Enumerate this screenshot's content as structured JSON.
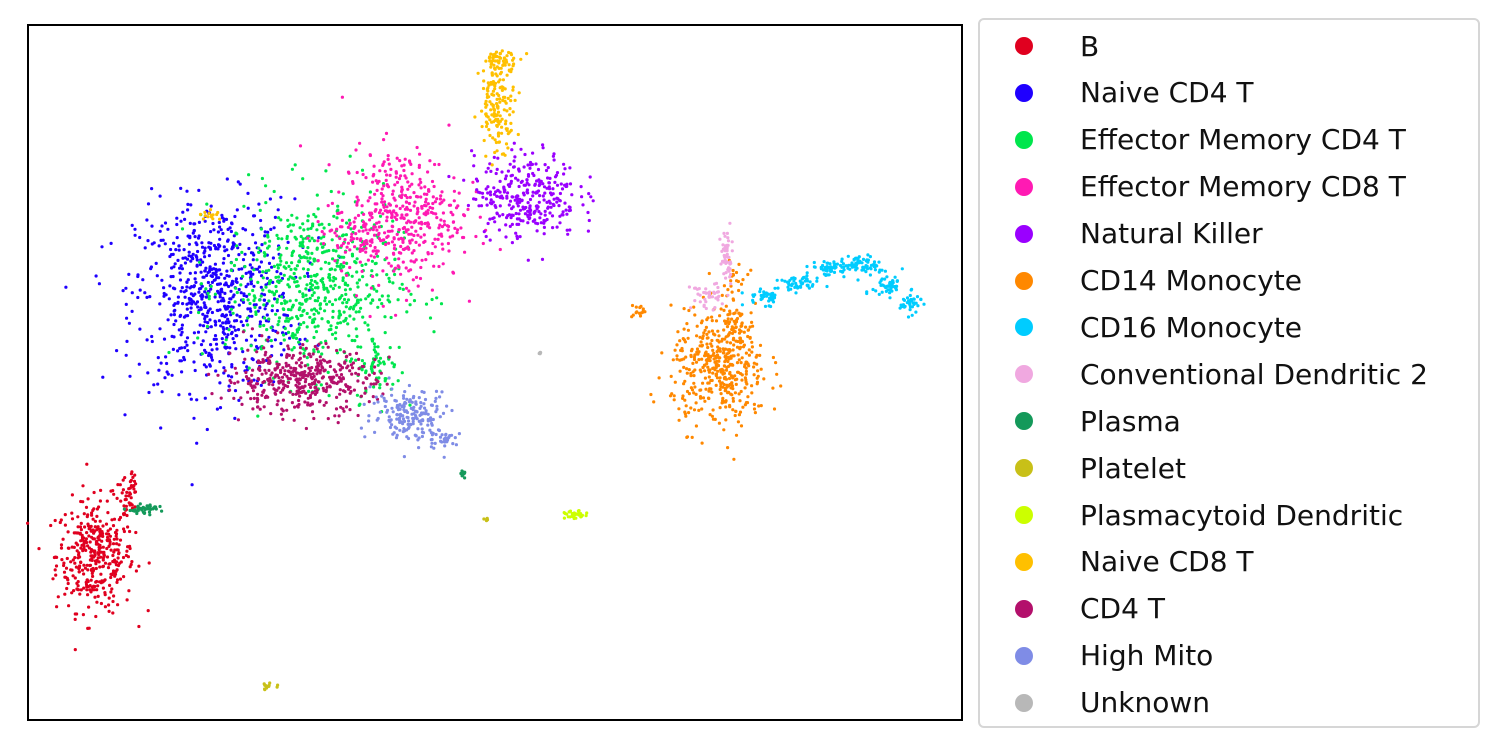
{
  "chart_data": {
    "type": "scatter",
    "xlim": [
      0,
      100
    ],
    "ylim": [
      0,
      100
    ],
    "grid": false,
    "axes_ticks": false,
    "legend_placement": "right outside",
    "series": [
      {
        "name": "B",
        "color": "#e0001f",
        "clusters": [
          {
            "x": 7.2,
            "y": 23.7,
            "sx": 2.6,
            "sy": 5.0,
            "n": 380
          },
          {
            "x": 10.5,
            "y": 31.5,
            "sx": 0.8,
            "sy": 2.0,
            "n": 30
          },
          {
            "x": 11.2,
            "y": 34.0,
            "sx": 0.2,
            "sy": 1.0,
            "n": 12
          }
        ]
      },
      {
        "name": "Naive CD4 T",
        "color": "#1f00ff",
        "clusters": [
          {
            "x": 20.0,
            "y": 61.2,
            "sx": 5.3,
            "sy": 8.5,
            "n": 700
          }
        ]
      },
      {
        "name": "Effector Memory CD4 T",
        "color": "#00e64d",
        "clusters": [
          {
            "x": 30.5,
            "y": 62.5,
            "sx": 5.8,
            "sy": 8.0,
            "n": 620
          },
          {
            "x": 37.5,
            "y": 50.5,
            "sx": 1.5,
            "sy": 3.0,
            "n": 60
          }
        ]
      },
      {
        "name": "Effector Memory CD8 T",
        "color": "#ff1ab3",
        "clusters": [
          {
            "x": 40.0,
            "y": 72.5,
            "sx": 4.0,
            "sy": 6.0,
            "n": 420
          },
          {
            "x": 34.5,
            "y": 69.5,
            "sx": 2.5,
            "sy": 2.0,
            "n": 60
          }
        ]
      },
      {
        "name": "Natural Killer",
        "color": "#9a00ff",
        "clusters": [
          {
            "x": 53.3,
            "y": 75.5,
            "sx": 3.5,
            "sy": 3.8,
            "n": 320
          }
        ]
      },
      {
        "name": "CD14 Monocyte",
        "color": "#ff8800",
        "clusters": [
          {
            "x": 74.0,
            "y": 50.5,
            "sx": 3.2,
            "sy": 5.2,
            "n": 420
          },
          {
            "x": 75.5,
            "y": 58.0,
            "sx": 1.0,
            "sy": 4.0,
            "n": 80
          },
          {
            "x": 65.5,
            "y": 58.7,
            "sx": 0.6,
            "sy": 0.6,
            "n": 15
          }
        ]
      },
      {
        "name": "CD16 Monocyte",
        "color": "#00ccff",
        "clusters": [
          {
            "x": 79.0,
            "y": 61.0,
            "sx": 1.3,
            "sy": 0.8,
            "n": 40
          },
          {
            "x": 82.5,
            "y": 62.8,
            "sx": 1.4,
            "sy": 0.7,
            "n": 50
          },
          {
            "x": 86.0,
            "y": 65.0,
            "sx": 1.4,
            "sy": 0.7,
            "n": 60
          },
          {
            "x": 89.5,
            "y": 65.5,
            "sx": 1.2,
            "sy": 0.8,
            "n": 60
          },
          {
            "x": 92.0,
            "y": 62.5,
            "sx": 1.0,
            "sy": 1.2,
            "n": 50
          },
          {
            "x": 94.5,
            "y": 60.0,
            "sx": 0.7,
            "sy": 0.9,
            "n": 40
          }
        ]
      },
      {
        "name": "Conventional Dendritic 2",
        "color": "#f0a8e0",
        "clusters": [
          {
            "x": 74.8,
            "y": 66.5,
            "sx": 0.4,
            "sy": 2.8,
            "n": 50
          },
          {
            "x": 72.5,
            "y": 61.0,
            "sx": 1.0,
            "sy": 1.2,
            "n": 40
          }
        ]
      },
      {
        "name": "Plasma",
        "color": "#14995a",
        "clusters": [
          {
            "x": 12.5,
            "y": 30.3,
            "sx": 1.2,
            "sy": 0.4,
            "n": 40
          },
          {
            "x": 46.6,
            "y": 35.3,
            "sx": 0.15,
            "sy": 0.5,
            "n": 10
          }
        ]
      },
      {
        "name": "Platelet",
        "color": "#c8c018",
        "clusters": [
          {
            "x": 25.7,
            "y": 4.9,
            "sx": 0.5,
            "sy": 0.3,
            "n": 12
          },
          {
            "x": 49.1,
            "y": 28.8,
            "sx": 0.2,
            "sy": 0.2,
            "n": 5
          }
        ]
      },
      {
        "name": "Plasmacytoid Dendritic",
        "color": "#ccff00",
        "clusters": [
          {
            "x": 58.6,
            "y": 29.4,
            "sx": 0.7,
            "sy": 0.4,
            "n": 30
          }
        ]
      },
      {
        "name": "Naive CD8 T",
        "color": "#ffc000",
        "clusters": [
          {
            "x": 50.3,
            "y": 89.0,
            "sx": 1.2,
            "sy": 4.2,
            "n": 160
          },
          {
            "x": 50.8,
            "y": 95.0,
            "sx": 1.3,
            "sy": 0.8,
            "n": 40
          },
          {
            "x": 19.5,
            "y": 72.7,
            "sx": 0.6,
            "sy": 0.5,
            "n": 15
          }
        ]
      },
      {
        "name": "CD4 T",
        "color": "#b3106b",
        "clusters": [
          {
            "x": 29.0,
            "y": 49.0,
            "sx": 5.0,
            "sy": 3.0,
            "n": 420
          }
        ]
      },
      {
        "name": "High Mito",
        "color": "#7f8ce6",
        "clusters": [
          {
            "x": 41.0,
            "y": 44.0,
            "sx": 2.6,
            "sy": 2.3,
            "n": 180
          },
          {
            "x": 44.5,
            "y": 40.5,
            "sx": 1.0,
            "sy": 1.0,
            "n": 30
          }
        ]
      },
      {
        "name": "Unknown",
        "color": "#b8b8b8",
        "clusters": [
          {
            "x": 54.8,
            "y": 52.8,
            "sx": 0.15,
            "sy": 0.15,
            "n": 5
          }
        ]
      }
    ]
  }
}
